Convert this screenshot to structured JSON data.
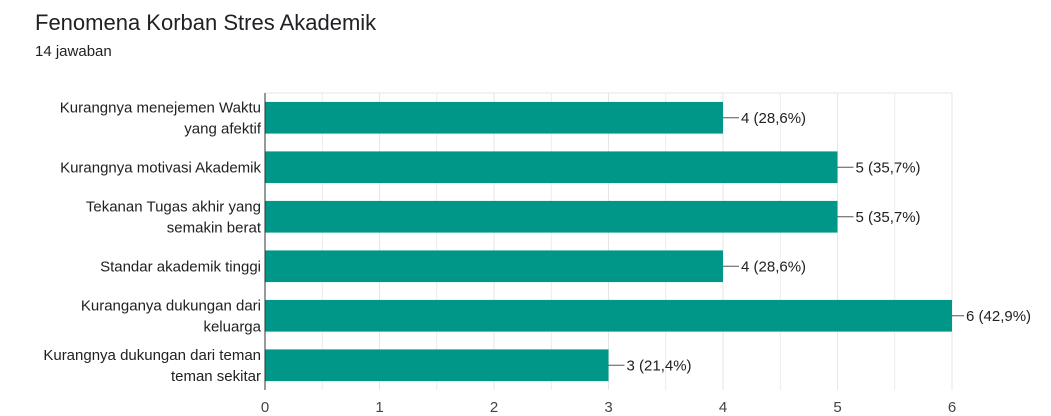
{
  "header": {
    "title": "Fenomena Korban Stres Akademik",
    "subtitle": "14 jawaban"
  },
  "chart_data": {
    "type": "bar",
    "orientation": "horizontal",
    "title": "Fenomena Korban Stres Akademik",
    "subtitle": "14 jawaban",
    "categories": [
      [
        "Kurangnya menejemen Waktu",
        "yang afektif"
      ],
      [
        "Kurangnya motivasi Akademik"
      ],
      [
        "Tekanan Tugas akhir yang",
        "semakin berat"
      ],
      [
        "Standar akademik tinggi"
      ],
      [
        "Kuranganya dukungan dari",
        "keluarga"
      ],
      [
        "Kurangnya dukungan dari teman",
        "teman sekitar"
      ]
    ],
    "values": [
      4,
      5,
      5,
      4,
      6,
      3
    ],
    "value_labels": [
      "4 (28,6%)",
      "5 (35,7%)",
      "5 (35,7%)",
      "4 (28,6%)",
      "6 (42,9%)",
      "3 (21,4%)"
    ],
    "x_ticks": [
      "0",
      "1",
      "2",
      "3",
      "4",
      "5",
      "6"
    ],
    "xlim": [
      0,
      6
    ],
    "xlabel": "",
    "ylabel": "",
    "grid": true,
    "bar_color": "#009688",
    "grid_color": "#e6e6e6",
    "axis_color": "#333333"
  }
}
